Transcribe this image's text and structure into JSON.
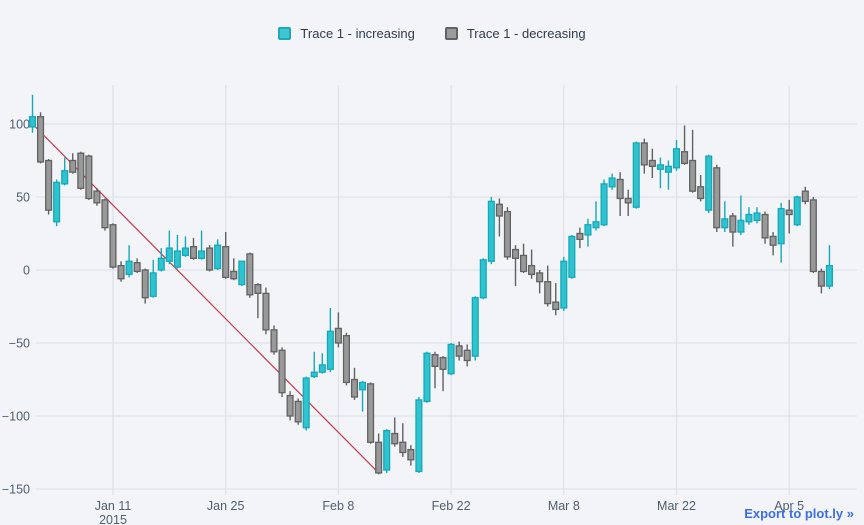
{
  "legend": {
    "items": [
      {
        "id": "increasing",
        "label": "Trace 1 - increasing",
        "fill": "#3fc6d3",
        "border": "#1ca9b9"
      },
      {
        "id": "decreasing",
        "label": "Trace 1 - decreasing",
        "fill": "#9b9b9b",
        "border": "#636363"
      }
    ]
  },
  "export_link": {
    "label": "Export to plot.ly »",
    "color": "#3e6ede"
  },
  "chart_data": {
    "type": "candlestick",
    "title": "",
    "xlabel": "",
    "ylabel": "",
    "grid": true,
    "background": "#f2f4f8",
    "gridline_color": "#dfe2ea",
    "tick_label_color": "#4f5e70",
    "x_start_date": "2015-01-01",
    "x_end_date": "2015-04-10",
    "x_interval": "daily",
    "x_ticks": [
      {
        "label": "Jan 11",
        "sublabel": "2015",
        "day": 10
      },
      {
        "label": "Jan 25",
        "day": 24
      },
      {
        "label": "Feb 8",
        "day": 38
      },
      {
        "label": "Feb 22",
        "day": 52
      },
      {
        "label": "Mar 8",
        "day": 66
      },
      {
        "label": "Mar 22",
        "day": 80
      },
      {
        "label": "Apr 5",
        "day": 94
      }
    ],
    "y_ticks": [
      {
        "label": "100",
        "value": 100
      },
      {
        "label": "50",
        "value": 50
      },
      {
        "label": "0",
        "value": 0
      },
      {
        "label": "−50",
        "value": -50
      },
      {
        "label": "−100",
        "value": -100
      },
      {
        "label": "−150",
        "value": -150
      }
    ],
    "ylim": [
      -154,
      127
    ],
    "increasing": {
      "fill": "#2fc3d0",
      "line": "#17a8b8"
    },
    "decreasing": {
      "fill": "#999999",
      "line": "#616161"
    },
    "trend_line": {
      "color": "#c53a4f",
      "from": {
        "day": 0,
        "value": 100
      },
      "to": {
        "day": 43,
        "value": -139
      }
    },
    "candle_columns": [
      "open",
      "high",
      "low",
      "close"
    ],
    "candles": [
      [
        98,
        120,
        94,
        105
      ],
      [
        105,
        108,
        73,
        74
      ],
      [
        75,
        76,
        38,
        41
      ],
      [
        33,
        62,
        30,
        60
      ],
      [
        59,
        77,
        58,
        68
      ],
      [
        75,
        80,
        66,
        67
      ],
      [
        80,
        81,
        55,
        56
      ],
      [
        78,
        79,
        48,
        49
      ],
      [
        54,
        56,
        44,
        46
      ],
      [
        48,
        49,
        27,
        29
      ],
      [
        31,
        32,
        1,
        2
      ],
      [
        3,
        6,
        -8,
        -6
      ],
      [
        -3,
        17,
        -5,
        6
      ],
      [
        5,
        8,
        -2,
        -1
      ],
      [
        0,
        1,
        -23,
        -19
      ],
      [
        -18,
        7,
        -19,
        -2
      ],
      [
        0,
        15,
        -1,
        8
      ],
      [
        6,
        27,
        4,
        15
      ],
      [
        2,
        24,
        1,
        13
      ],
      [
        10,
        23,
        9,
        15
      ],
      [
        16,
        22,
        7,
        8
      ],
      [
        8,
        27,
        7,
        13
      ],
      [
        15,
        17,
        -1,
        0
      ],
      [
        1,
        21,
        0,
        17
      ],
      [
        16,
        26,
        -6,
        -5
      ],
      [
        -1,
        8,
        -7,
        -6
      ],
      [
        -10,
        6,
        -11,
        6
      ],
      [
        11,
        12,
        -19,
        -17
      ],
      [
        -10,
        -9,
        -33,
        -16
      ],
      [
        -16,
        -12,
        -44,
        -41
      ],
      [
        -41,
        -38,
        -58,
        -56
      ],
      [
        -55,
        -53,
        -87,
        -84
      ],
      [
        -86,
        -83,
        -103,
        -100
      ],
      [
        -90,
        -88,
        -106,
        -104
      ],
      [
        -108,
        -73,
        -110,
        -74
      ],
      [
        -73,
        -56,
        -74,
        -70
      ],
      [
        -70,
        -57,
        -71,
        -65
      ],
      [
        -68,
        -26,
        -70,
        -42
      ],
      [
        -40,
        -29,
        -53,
        -50
      ],
      [
        -45,
        -43,
        -79,
        -77
      ],
      [
        -75,
        -67,
        -89,
        -87
      ],
      [
        -82,
        -76,
        -97,
        -77
      ],
      [
        -78,
        -77,
        -119,
        -118
      ],
      [
        -118,
        -112,
        -140,
        -139
      ],
      [
        -137,
        -109,
        -139,
        -110
      ],
      [
        -112,
        -101,
        -121,
        -119
      ],
      [
        -118,
        -105,
        -128,
        -125
      ],
      [
        -123,
        -120,
        -134,
        -130
      ],
      [
        -138,
        -87,
        -139,
        -89
      ],
      [
        -90,
        -56,
        -91,
        -57
      ],
      [
        -58,
        -56,
        -81,
        -66
      ],
      [
        -60,
        -59,
        -83,
        -68
      ],
      [
        -71,
        -50,
        -72,
        -51
      ],
      [
        -52,
        -49,
        -62,
        -59
      ],
      [
        -55,
        -51,
        -66,
        -62
      ],
      [
        -59,
        -18,
        -62,
        -19
      ],
      [
        -19,
        8,
        -20,
        7
      ],
      [
        6,
        50,
        4,
        47
      ],
      [
        45,
        49,
        23,
        37
      ],
      [
        40,
        43,
        7,
        9
      ],
      [
        14,
        17,
        -11,
        8
      ],
      [
        10,
        18,
        -2,
        -1
      ],
      [
        3,
        14,
        -6,
        -3
      ],
      [
        -2,
        0,
        -16,
        -8
      ],
      [
        -8,
        3,
        -25,
        -23
      ],
      [
        -22,
        -9,
        -31,
        -27
      ],
      [
        -26,
        9,
        -28,
        6
      ],
      [
        -5,
        24,
        -6,
        23
      ],
      [
        25,
        29,
        15,
        21
      ],
      [
        24,
        35,
        16,
        31
      ],
      [
        29,
        47,
        27,
        33
      ],
      [
        31,
        62,
        30,
        59
      ],
      [
        57,
        66,
        55,
        63
      ],
      [
        62,
        67,
        37,
        49
      ],
      [
        49,
        55,
        37,
        46
      ],
      [
        43,
        88,
        42,
        87
      ],
      [
        87,
        90,
        66,
        72
      ],
      [
        75,
        83,
        63,
        71
      ],
      [
        69,
        77,
        56,
        72
      ],
      [
        67,
        75,
        55,
        71
      ],
      [
        70,
        89,
        68,
        83
      ],
      [
        81,
        99,
        72,
        73
      ],
      [
        75,
        96,
        53,
        54
      ],
      [
        57,
        65,
        47,
        49
      ],
      [
        41,
        79,
        39,
        78
      ],
      [
        70,
        72,
        26,
        29
      ],
      [
        29,
        47,
        26,
        35
      ],
      [
        37,
        39,
        16,
        26
      ],
      [
        26,
        51,
        24,
        34
      ],
      [
        33,
        43,
        31,
        38
      ],
      [
        34,
        43,
        32,
        39
      ],
      [
        38,
        40,
        18,
        22
      ],
      [
        23,
        26,
        10,
        17
      ],
      [
        18,
        46,
        5,
        42
      ],
      [
        41,
        48,
        25,
        38
      ],
      [
        31,
        51,
        30,
        50
      ],
      [
        54,
        57,
        45,
        47
      ],
      [
        48,
        50,
        -2,
        -1
      ],
      [
        -1,
        1,
        -16,
        -11
      ],
      [
        -11,
        17,
        -13,
        3
      ]
    ]
  }
}
